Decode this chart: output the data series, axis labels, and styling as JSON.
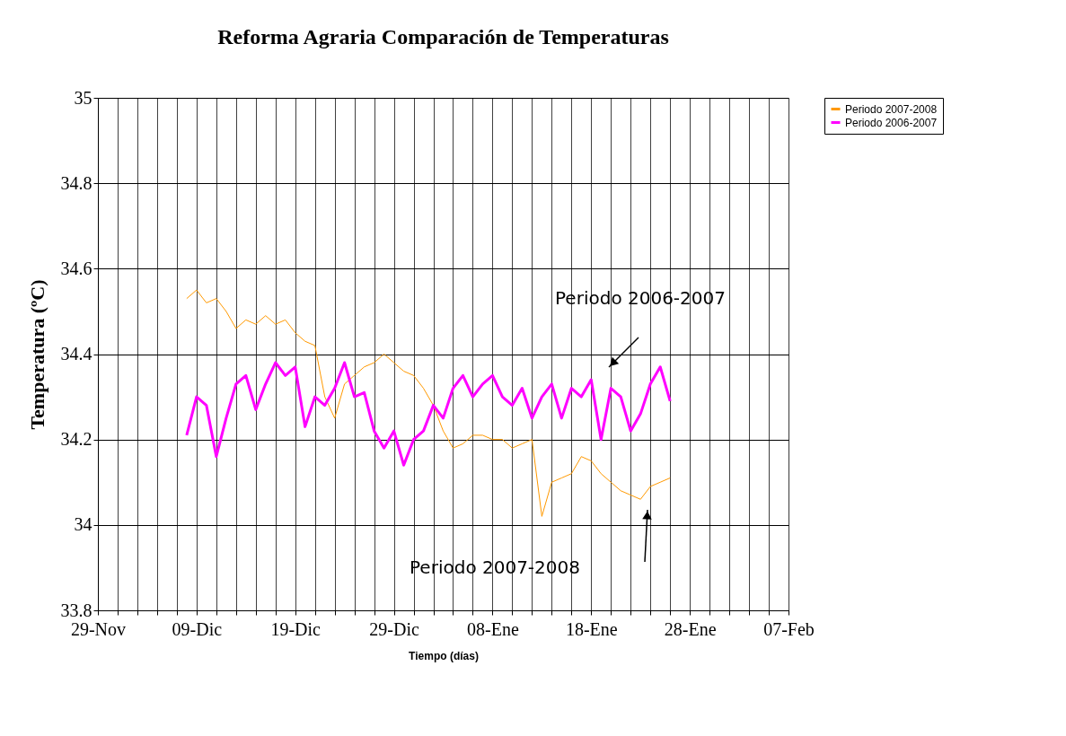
{
  "chart_data": {
    "type": "line",
    "title": "Reforma Agraria Comparación de Temperaturas",
    "xlabel": "Tiempo (días)",
    "ylabel": "Temperatura (ºC)",
    "xlim": [
      "2007-11-29",
      "2008-02-07"
    ],
    "xticks": [
      {
        "value": "2007-11-29",
        "label": "29-Nov"
      },
      {
        "value": "2007-12-01",
        "label": null
      },
      {
        "value": "2007-12-03",
        "label": null
      },
      {
        "value": "2007-12-05",
        "label": null
      },
      {
        "value": "2007-12-07",
        "label": null
      },
      {
        "value": "2007-12-09",
        "label": "09-Dic"
      },
      {
        "value": "2007-12-11",
        "label": null
      },
      {
        "value": "2007-12-13",
        "label": null
      },
      {
        "value": "2007-12-15",
        "label": null
      },
      {
        "value": "2007-12-17",
        "label": null
      },
      {
        "value": "2007-12-19",
        "label": "19-Dic"
      },
      {
        "value": "2007-12-21",
        "label": null
      },
      {
        "value": "2007-12-23",
        "label": null
      },
      {
        "value": "2007-12-25",
        "label": null
      },
      {
        "value": "2007-12-27",
        "label": null
      },
      {
        "value": "2007-12-29",
        "label": "29-Dic"
      },
      {
        "value": "2007-12-31",
        "label": null
      },
      {
        "value": "2008-01-02",
        "label": null
      },
      {
        "value": "2008-01-04",
        "label": null
      },
      {
        "value": "2008-01-06",
        "label": null
      },
      {
        "value": "2008-01-08",
        "label": "08-Ene"
      },
      {
        "value": "2008-01-10",
        "label": null
      },
      {
        "value": "2008-01-12",
        "label": null
      },
      {
        "value": "2008-01-14",
        "label": null
      },
      {
        "value": "2008-01-16",
        "label": null
      },
      {
        "value": "2008-01-18",
        "label": "18-Ene"
      },
      {
        "value": "2008-01-20",
        "label": null
      },
      {
        "value": "2008-01-22",
        "label": null
      },
      {
        "value": "2008-01-24",
        "label": null
      },
      {
        "value": "2008-01-26",
        "label": null
      },
      {
        "value": "2008-01-28",
        "label": "28-Ene"
      },
      {
        "value": "2008-01-30",
        "label": null
      },
      {
        "value": "2008-02-01",
        "label": null
      },
      {
        "value": "2008-02-03",
        "label": null
      },
      {
        "value": "2008-02-05",
        "label": null
      },
      {
        "value": "2008-02-07",
        "label": "07-Feb"
      }
    ],
    "ylim": [
      33.8,
      35
    ],
    "yticks": [
      33.8,
      34,
      34.2,
      34.4,
      34.6,
      34.8,
      35
    ],
    "grid": true,
    "legend": "right",
    "line_style": "solid",
    "marker": "none",
    "x": [
      "2007-12-08",
      "2007-12-09",
      "2007-12-10",
      "2007-12-11",
      "2007-12-12",
      "2007-12-13",
      "2007-12-14",
      "2007-12-15",
      "2007-12-16",
      "2007-12-17",
      "2007-12-18",
      "2007-12-19",
      "2007-12-20",
      "2007-12-21",
      "2007-12-22",
      "2007-12-23",
      "2007-12-24",
      "2007-12-25",
      "2007-12-26",
      "2007-12-27",
      "2007-12-28",
      "2007-12-29",
      "2007-12-30",
      "2007-12-31",
      "2008-01-01",
      "2008-01-02",
      "2008-01-03",
      "2008-01-04",
      "2008-01-05",
      "2008-01-06",
      "2008-01-07",
      "2008-01-08",
      "2008-01-09",
      "2008-01-10",
      "2008-01-11",
      "2008-01-12",
      "2008-01-13",
      "2008-01-14",
      "2008-01-15",
      "2008-01-16",
      "2008-01-17",
      "2008-01-18",
      "2008-01-19",
      "2008-01-20",
      "2008-01-21",
      "2008-01-22",
      "2008-01-23",
      "2008-01-24",
      "2008-01-25",
      "2008-01-26"
    ],
    "series": [
      {
        "name": "Periodo 2007-2008",
        "color": "#ff9900",
        "values": [
          34.53,
          34.55,
          34.52,
          34.53,
          34.5,
          34.46,
          34.48,
          34.47,
          34.49,
          34.47,
          34.48,
          34.45,
          34.43,
          34.42,
          34.3,
          34.25,
          34.33,
          34.35,
          34.37,
          34.38,
          34.4,
          34.38,
          34.36,
          34.35,
          34.32,
          34.28,
          34.22,
          34.18,
          34.19,
          34.21,
          34.21,
          34.2,
          34.2,
          34.18,
          34.19,
          34.2,
          34.02,
          34.1,
          34.11,
          34.12,
          34.16,
          34.15,
          34.12,
          34.1,
          34.08,
          34.07,
          34.06,
          34.09,
          34.1,
          34.11
        ]
      },
      {
        "name": "Periodo 2006-2007",
        "color": "#ff00ff",
        "values": [
          34.21,
          34.3,
          34.28,
          34.16,
          34.25,
          34.33,
          34.35,
          34.27,
          34.33,
          34.38,
          34.35,
          34.37,
          34.23,
          34.3,
          34.28,
          34.32,
          34.38,
          34.3,
          34.31,
          34.22,
          34.18,
          34.22,
          34.14,
          34.2,
          34.22,
          34.28,
          34.25,
          34.32,
          34.35,
          34.3,
          34.33,
          34.35,
          34.3,
          34.28,
          34.32,
          34.25,
          34.3,
          34.33,
          34.25,
          34.32,
          34.3,
          34.34,
          34.2,
          34.32,
          34.3,
          34.22,
          34.26,
          34.33,
          34.37,
          34.29
        ]
      }
    ],
    "annotations": [
      "Periodo 2006-2007",
      "Periodo 2007-2008"
    ]
  }
}
